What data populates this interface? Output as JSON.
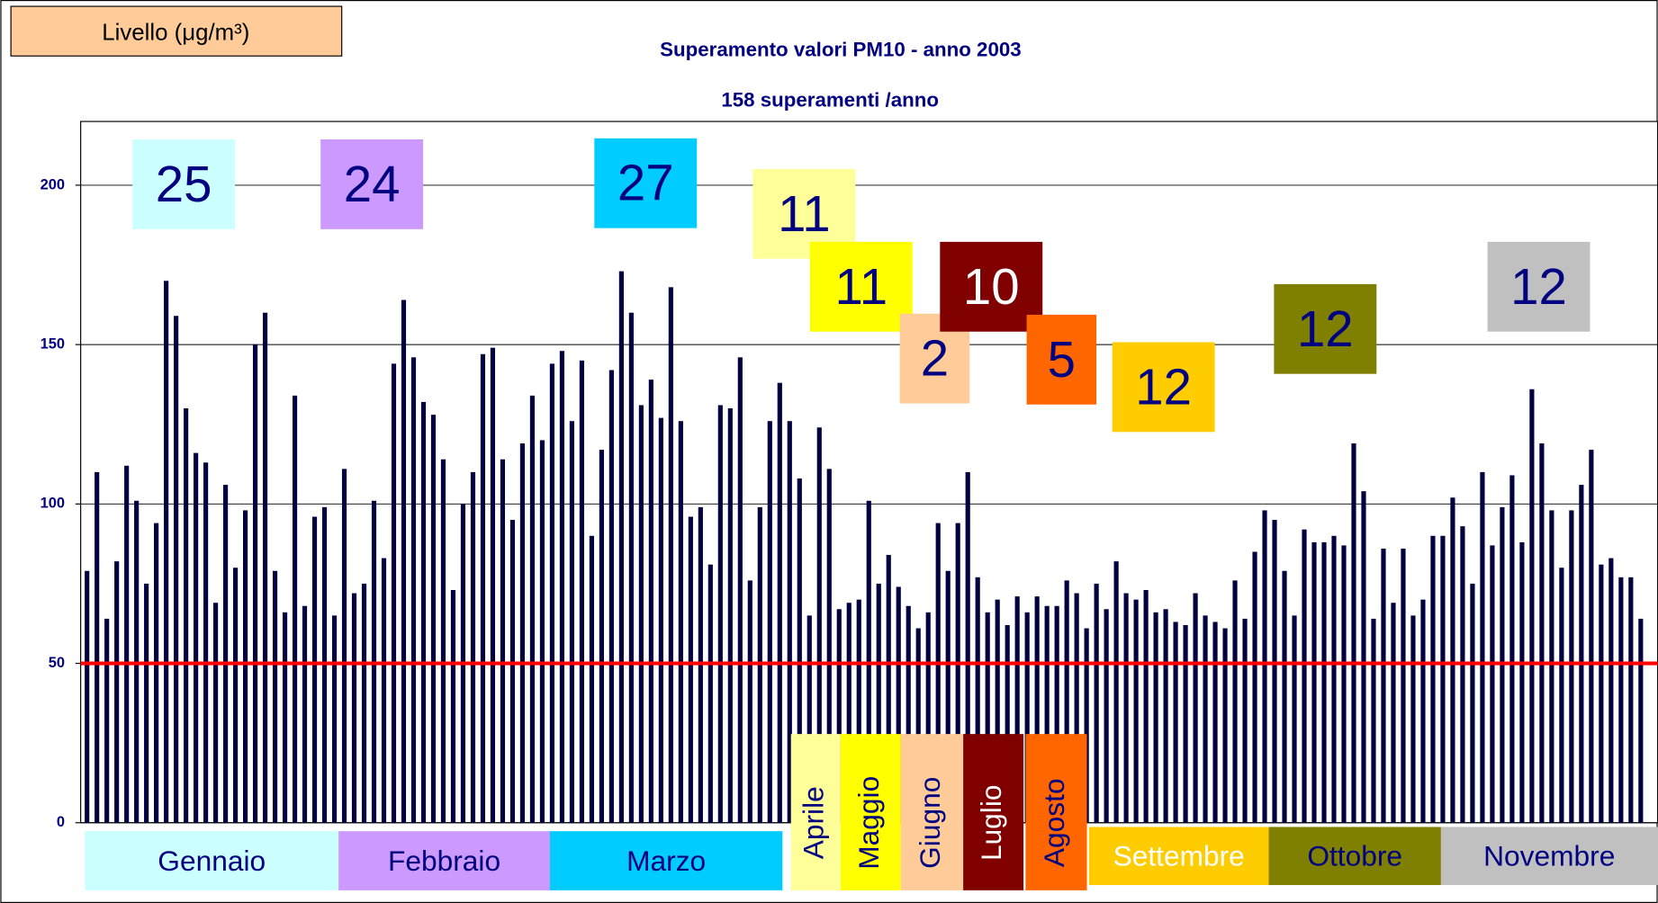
{
  "chart_data": {
    "type": "bar",
    "title": "Superamento valori PM10 - anno 2003",
    "subtitle": "158 superamenti /anno",
    "ylabel": "Livello (μg/m³)",
    "color": "#000040",
    "ylim": [
      0,
      220
    ],
    "yticks": [
      0,
      50,
      100,
      150,
      200
    ],
    "grid": true,
    "threshold": 50,
    "threshold_color": "#ff0000",
    "values": [
      79,
      110,
      64,
      82,
      112,
      101,
      75,
      94,
      170,
      159,
      130,
      116,
      113,
      69,
      106,
      80,
      98,
      150,
      160,
      79,
      66,
      134,
      68,
      96,
      99,
      65,
      111,
      72,
      75,
      101,
      83,
      144,
      164,
      146,
      132,
      128,
      114,
      73,
      100,
      110,
      147,
      149,
      114,
      95,
      119,
      134,
      120,
      144,
      148,
      126,
      145,
      90,
      117,
      142,
      173,
      160,
      131,
      139,
      127,
      168,
      126,
      96,
      99,
      81,
      131,
      130,
      146,
      76,
      99,
      126,
      138,
      126,
      108,
      65,
      124,
      111,
      67,
      69,
      70,
      101,
      75,
      84,
      74,
      68,
      61,
      66,
      94,
      79,
      94,
      110,
      77,
      66,
      70,
      62,
      71,
      66,
      71,
      68,
      68,
      76,
      72,
      61,
      75,
      67,
      82,
      72,
      70,
      73,
      66,
      67,
      63,
      62,
      72,
      65,
      63,
      61,
      76,
      64,
      85,
      98,
      95,
      79,
      65,
      92,
      88,
      88,
      90,
      87,
      119,
      104,
      64,
      86,
      69,
      86,
      65,
      70,
      90,
      90,
      102,
      93,
      75,
      110,
      87,
      99,
      109,
      88,
      136,
      119,
      98,
      80,
      98,
      106,
      117,
      81,
      83,
      77,
      77,
      64
    ],
    "months": [
      {
        "name": "Gennaio",
        "count": 25,
        "color": "#ccffff"
      },
      {
        "name": "Febbraio",
        "count": 24,
        "color": "#cc99ff"
      },
      {
        "name": "Marzo",
        "count": 27,
        "color": "#00ccff"
      },
      {
        "name": "Aprile",
        "count": 11,
        "color": "#ffff99"
      },
      {
        "name": "Maggio",
        "count": 11,
        "color": "#ffff00"
      },
      {
        "name": "Giugno",
        "count": 2,
        "color": "#ffcc99"
      },
      {
        "name": "Luglio",
        "count": 10,
        "color": "#800000"
      },
      {
        "name": "Agosto",
        "count": 5,
        "color": "#ff6600"
      },
      {
        "name": "Settembre",
        "count": 12,
        "color": "#ffcc00"
      },
      {
        "name": "Ottobre",
        "count": 12,
        "color": "#808000"
      },
      {
        "name": "Novembre",
        "count": 12,
        "color": "#c0c0c0"
      }
    ]
  }
}
